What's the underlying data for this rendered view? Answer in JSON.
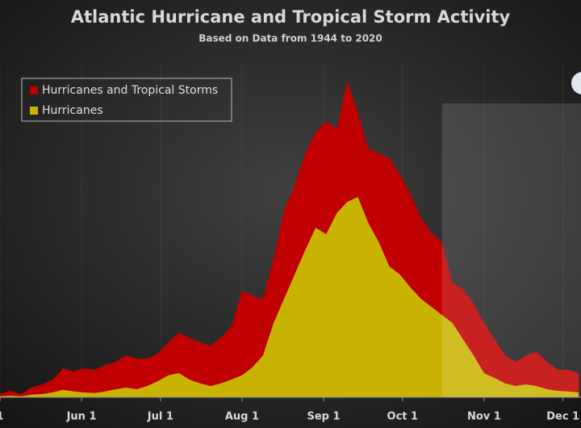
{
  "chart_data": {
    "type": "area",
    "title": "Atlantic Hurricane and Tropical Storm Activity",
    "subtitle": "Based on Data from 1944 to 2020",
    "x": [
      0,
      4,
      8,
      12,
      16,
      20,
      24,
      28,
      32,
      36,
      40,
      44,
      48,
      52,
      56,
      60,
      64,
      68,
      72,
      76,
      80,
      84,
      88,
      92,
      96,
      100,
      104,
      108,
      112,
      116,
      120,
      124,
      128,
      132,
      136,
      140,
      144,
      148,
      152,
      156,
      160,
      164,
      168,
      172,
      176,
      180,
      184,
      188,
      192,
      196,
      200,
      204,
      208,
      212,
      216,
      220
    ],
    "xlim": [
      0,
      221
    ],
    "xticks": [
      {
        "value": 0,
        "label": "1"
      },
      {
        "value": 31,
        "label": "Jun 1"
      },
      {
        "value": 61,
        "label": "Jul 1"
      },
      {
        "value": 92,
        "label": "Aug 1"
      },
      {
        "value": 123,
        "label": "Sep 1"
      },
      {
        "value": 153,
        "label": "Oct 1"
      },
      {
        "value": 184,
        "label": "Nov 1"
      },
      {
        "value": 214,
        "label": "Dec 1"
      }
    ],
    "ylim": [
      0,
      100
    ],
    "highlight_start": 168,
    "legend": "upper left",
    "series": [
      {
        "name": "Hurricanes and Tropical Storms",
        "color": "#c00000",
        "values": [
          1,
          2,
          1,
          3,
          4,
          5.5,
          9,
          8,
          9,
          8.5,
          10,
          11,
          13,
          12,
          12,
          13.5,
          17,
          20,
          18.5,
          17,
          16,
          18.5,
          22,
          33,
          31.5,
          30.5,
          43,
          58,
          65.5,
          75.5,
          82,
          85.5,
          83,
          98,
          88,
          77,
          75.5,
          74,
          69,
          63,
          55.5,
          51,
          48,
          35.5,
          33.5,
          29,
          23,
          18,
          13,
          11,
          13,
          14,
          11,
          8.5,
          8.5,
          7.5
        ]
      },
      {
        "name": "Hurricanes",
        "color": "#c8b400",
        "values": [
          0.3,
          0.5,
          0.3,
          0.8,
          1,
          1.5,
          2.3,
          1.8,
          1.5,
          1.3,
          1.8,
          2.5,
          3,
          2.5,
          3.5,
          5,
          6.8,
          7.5,
          5.5,
          4.3,
          3.5,
          4.3,
          5.5,
          6.8,
          9.3,
          13,
          23,
          30.5,
          38,
          45.5,
          52.5,
          50.5,
          57,
          60.5,
          62,
          54,
          48,
          40.5,
          38,
          34,
          30.5,
          28,
          25.5,
          23,
          18,
          13,
          7.5,
          6,
          4.3,
          3.5,
          4,
          3.5,
          2.5,
          2,
          1.8,
          1.5
        ]
      }
    ]
  }
}
